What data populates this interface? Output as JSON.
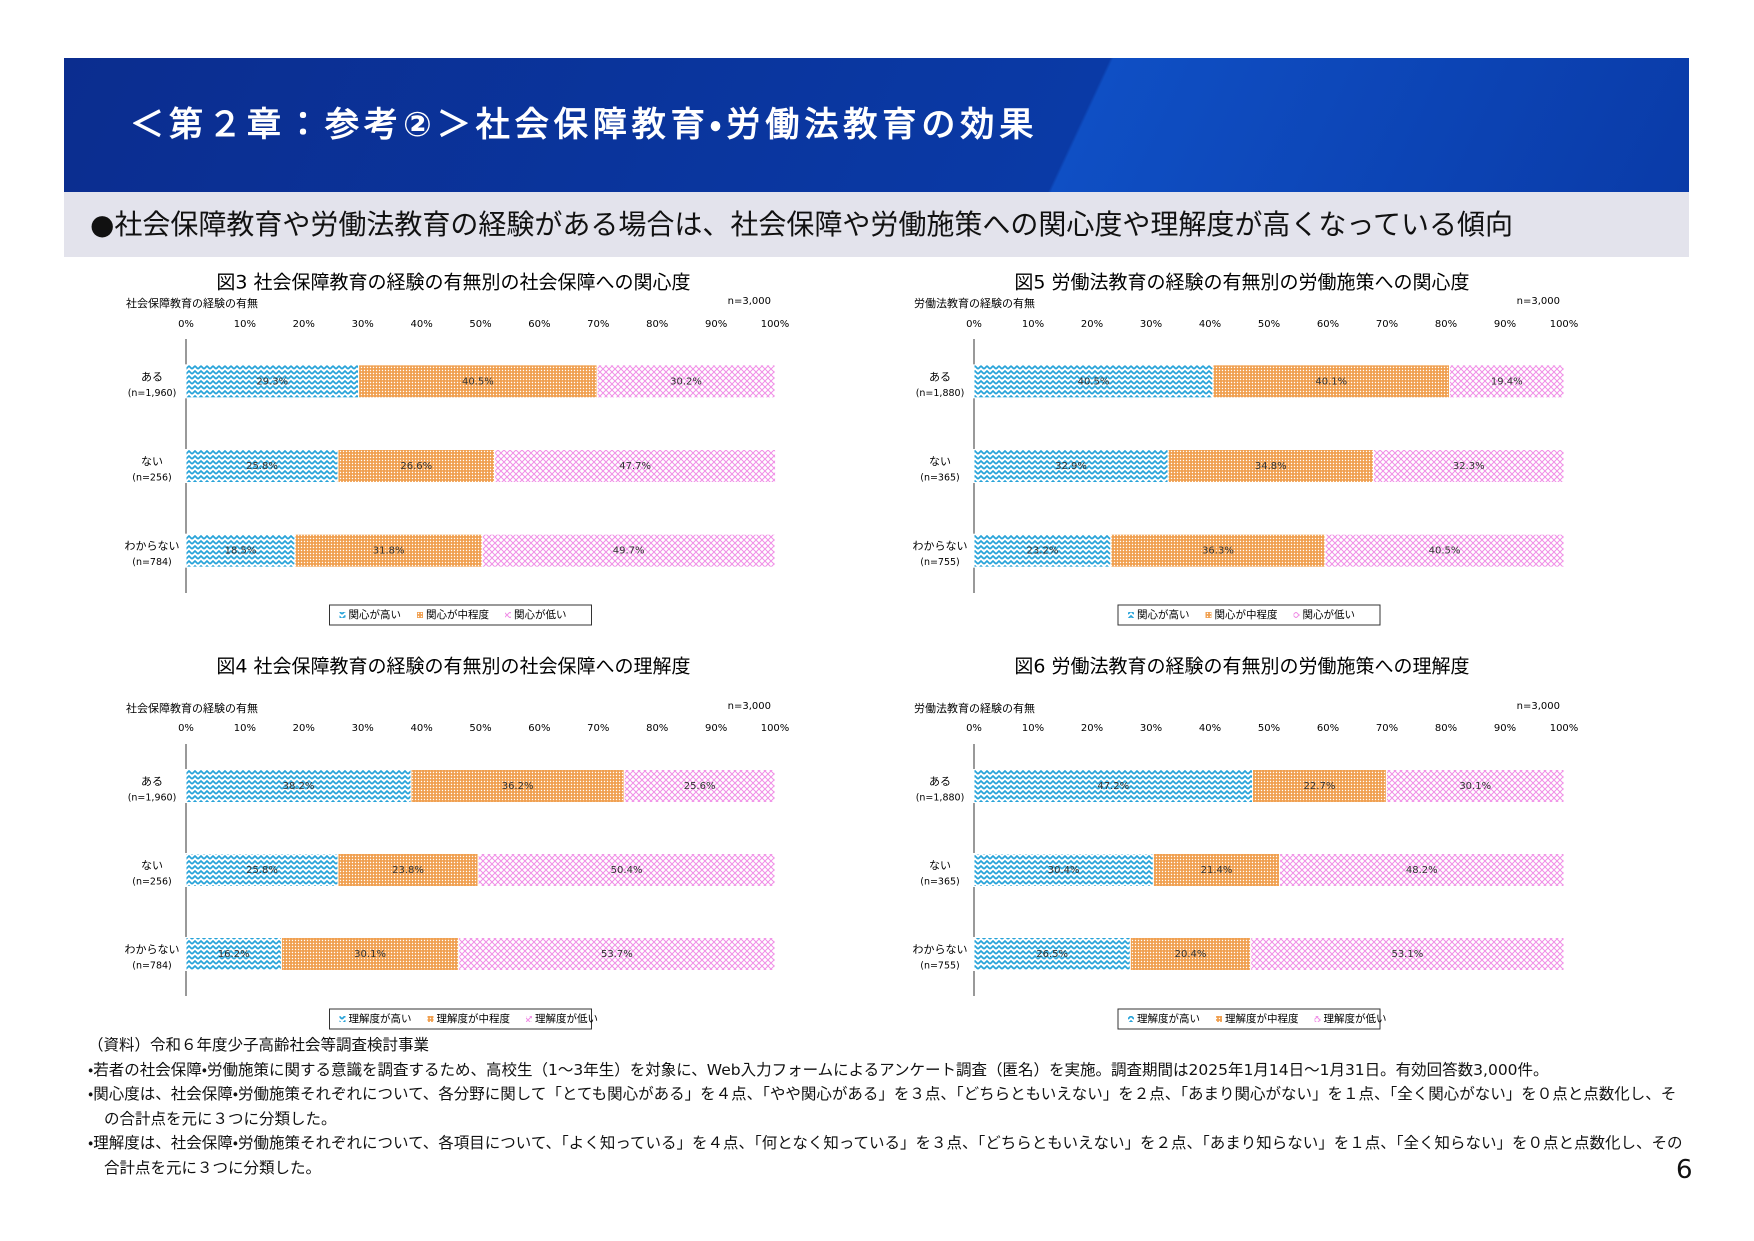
{
  "header": {
    "title": "＜第２章：参考②＞社会保障教育・労働法教育の効果",
    "subtitle": "●社会保障教育や労働法教育の経験がある場合は、社会保障や労働施策への関心度や理解度が高くなっている傾向"
  },
  "chart_data": [
    {
      "type": "bar",
      "orientation": "horizontal",
      "stacked": true,
      "title": "図3  社会保障教育の経験の有無別の社会保障への関心度",
      "axis_label": "社会保障教育の経験の有無",
      "note": "n=3,000",
      "categories": [
        "ある",
        "ない",
        "わからない"
      ],
      "category_notes": [
        "(n=1,960)",
        "(n=256)",
        "(n=784)"
      ],
      "xlim": [
        0,
        100
      ],
      "xticks": [
        {
          "value": 0,
          "label": "0%"
        },
        {
          "value": 10,
          "label": "10%"
        },
        {
          "value": 20,
          "label": "20%"
        },
        {
          "value": 30,
          "label": "30%"
        },
        {
          "value": 40,
          "label": "40%"
        },
        {
          "value": 50,
          "label": "50%"
        },
        {
          "value": 60,
          "label": "60%"
        },
        {
          "value": 70,
          "label": "70%"
        },
        {
          "value": 80,
          "label": "80%"
        },
        {
          "value": 90,
          "label": "90%"
        },
        {
          "value": 100,
          "label": "100%"
        }
      ],
      "legend": "bottom",
      "series": [
        {
          "name": "関心が高い",
          "color": "#27a3d9",
          "values": [
            29.3,
            25.8,
            18.5
          ],
          "value_labels": [
            "29.3%",
            "25.8%",
            "18.5%"
          ]
        },
        {
          "name": "関心が中程度",
          "color": "#f0a050",
          "values": [
            40.5,
            26.6,
            31.8
          ],
          "value_labels": [
            "40.5%",
            "26.6%",
            "31.8%"
          ]
        },
        {
          "name": "関心が低い",
          "color": "#f08ee6",
          "values": [
            30.2,
            47.7,
            49.7
          ],
          "value_labels": [
            "30.2%",
            "47.7%",
            "49.7%"
          ]
        }
      ]
    },
    {
      "type": "bar",
      "orientation": "horizontal",
      "stacked": true,
      "title": "図4  社会保障教育の経験の有無別の社会保障への理解度",
      "axis_label": "社会保障教育の経験の有無",
      "note": "n=3,000",
      "categories": [
        "ある",
        "ない",
        "わからない"
      ],
      "category_notes": [
        "(n=1,960)",
        "(n=256)",
        "(n=784)"
      ],
      "xlim": [
        0,
        100
      ],
      "xticks": [
        {
          "value": 0,
          "label": "0%"
        },
        {
          "value": 10,
          "label": "10%"
        },
        {
          "value": 20,
          "label": "20%"
        },
        {
          "value": 30,
          "label": "30%"
        },
        {
          "value": 40,
          "label": "40%"
        },
        {
          "value": 50,
          "label": "50%"
        },
        {
          "value": 60,
          "label": "60%"
        },
        {
          "value": 70,
          "label": "70%"
        },
        {
          "value": 80,
          "label": "80%"
        },
        {
          "value": 90,
          "label": "90%"
        },
        {
          "value": 100,
          "label": "100%"
        }
      ],
      "legend": "bottom",
      "series": [
        {
          "name": "理解度が高い",
          "color": "#27a3d9",
          "values": [
            38.2,
            25.8,
            16.2
          ],
          "value_labels": [
            "38.2%",
            "25.8%",
            "16.2%"
          ]
        },
        {
          "name": "理解度が中程度",
          "color": "#f0a050",
          "values": [
            36.2,
            23.8,
            30.1
          ],
          "value_labels": [
            "36.2%",
            "23.8%",
            "30.1%"
          ]
        },
        {
          "name": "理解度が低い",
          "color": "#f08ee6",
          "values": [
            25.6,
            50.4,
            53.7
          ],
          "value_labels": [
            "25.6%",
            "50.4%",
            "53.7%"
          ]
        }
      ]
    },
    {
      "type": "bar",
      "orientation": "horizontal",
      "stacked": true,
      "title": "図5  労働法教育の経験の有無別の労働施策への関心度",
      "axis_label": "労働法教育の経験の有無",
      "note": "n=3,000",
      "categories": [
        "ある",
        "ない",
        "わからない"
      ],
      "category_notes": [
        "(n=1,880)",
        "(n=365)",
        "(n=755)"
      ],
      "xlim": [
        0,
        100
      ],
      "xticks": [
        {
          "value": 0,
          "label": "0%"
        },
        {
          "value": 10,
          "label": "10%"
        },
        {
          "value": 20,
          "label": "20%"
        },
        {
          "value": 30,
          "label": "30%"
        },
        {
          "value": 40,
          "label": "40%"
        },
        {
          "value": 50,
          "label": "50%"
        },
        {
          "value": 60,
          "label": "60%"
        },
        {
          "value": 70,
          "label": "70%"
        },
        {
          "value": 80,
          "label": "80%"
        },
        {
          "value": 90,
          "label": "90%"
        },
        {
          "value": 100,
          "label": "100%"
        }
      ],
      "legend": "bottom",
      "series": [
        {
          "name": "関心が高い",
          "color": "#27a3d9",
          "values": [
            40.5,
            32.9,
            23.2
          ],
          "value_labels": [
            "40.5%",
            "32.9%",
            "23.2%"
          ]
        },
        {
          "name": "関心が中程度",
          "color": "#f0a050",
          "values": [
            40.1,
            34.8,
            36.3
          ],
          "value_labels": [
            "40.1%",
            "34.8%",
            "36.3%"
          ]
        },
        {
          "name": "関心が低い",
          "color": "#f08ee6",
          "values": [
            19.4,
            32.3,
            40.5
          ],
          "value_labels": [
            "19.4%",
            "32.3%",
            "40.5%"
          ]
        }
      ]
    },
    {
      "type": "bar",
      "orientation": "horizontal",
      "stacked": true,
      "title": "図6  労働法教育の経験の有無別の労働施策への理解度",
      "axis_label": "労働法教育の経験の有無",
      "note": "n=3,000",
      "categories": [
        "ある",
        "ない",
        "わからない"
      ],
      "category_notes": [
        "(n=1,880)",
        "(n=365)",
        "(n=755)"
      ],
      "xlim": [
        0,
        100
      ],
      "xticks": [
        {
          "value": 0,
          "label": "0%"
        },
        {
          "value": 10,
          "label": "10%"
        },
        {
          "value": 20,
          "label": "20%"
        },
        {
          "value": 30,
          "label": "30%"
        },
        {
          "value": 40,
          "label": "40%"
        },
        {
          "value": 50,
          "label": "50%"
        },
        {
          "value": 60,
          "label": "60%"
        },
        {
          "value": 70,
          "label": "70%"
        },
        {
          "value": 80,
          "label": "80%"
        },
        {
          "value": 90,
          "label": "90%"
        },
        {
          "value": 100,
          "label": "100%"
        }
      ],
      "legend": "bottom",
      "series": [
        {
          "name": "理解度が高い",
          "color": "#27a3d9",
          "values": [
            47.2,
            30.4,
            26.5
          ],
          "value_labels": [
            "47.2%",
            "30.4%",
            "26.5%"
          ]
        },
        {
          "name": "理解度が中程度",
          "color": "#f0a050",
          "values": [
            22.7,
            21.4,
            20.4
          ],
          "value_labels": [
            "22.7%",
            "21.4%",
            "20.4%"
          ]
        },
        {
          "name": "理解度が低い",
          "color": "#f08ee6",
          "values": [
            30.1,
            48.2,
            53.1
          ],
          "value_labels": [
            "30.1%",
            "48.2%",
            "53.1%"
          ]
        }
      ]
    }
  ],
  "notes": {
    "source": "（資料）令和６年度少子高齢社会等調査検討事業",
    "items": [
      "・若者の社会保障・労働施策に関する意識を調査するため、高校生（1～3年生）を対象に、Web入力フォームによるアンケート調査（匿名）を実施。調査期間は2025年1月14日～1月31日。有効回答数3,000件。",
      "・関心度は、社会保障・労働施策それぞれについて、各分野に関して「とても関心がある」を４点、「やや関心がある」を３点、「どちらともいえない」を２点、「あまり関心がない」を１点、「全く関心がない」を０点と点数化し、その合計点を元に３つに分類した。",
      "・理解度は、社会保障・労働施策それぞれについて、各項目について、「よく知っている」を４点、「何となく知っている」を３点、「どちらともいえない」を２点、「あまり知らない」を１点、「全く知らない」を０点と点数化し、その合計点を元に３つに分類した。"
    ]
  },
  "page_number": "6"
}
